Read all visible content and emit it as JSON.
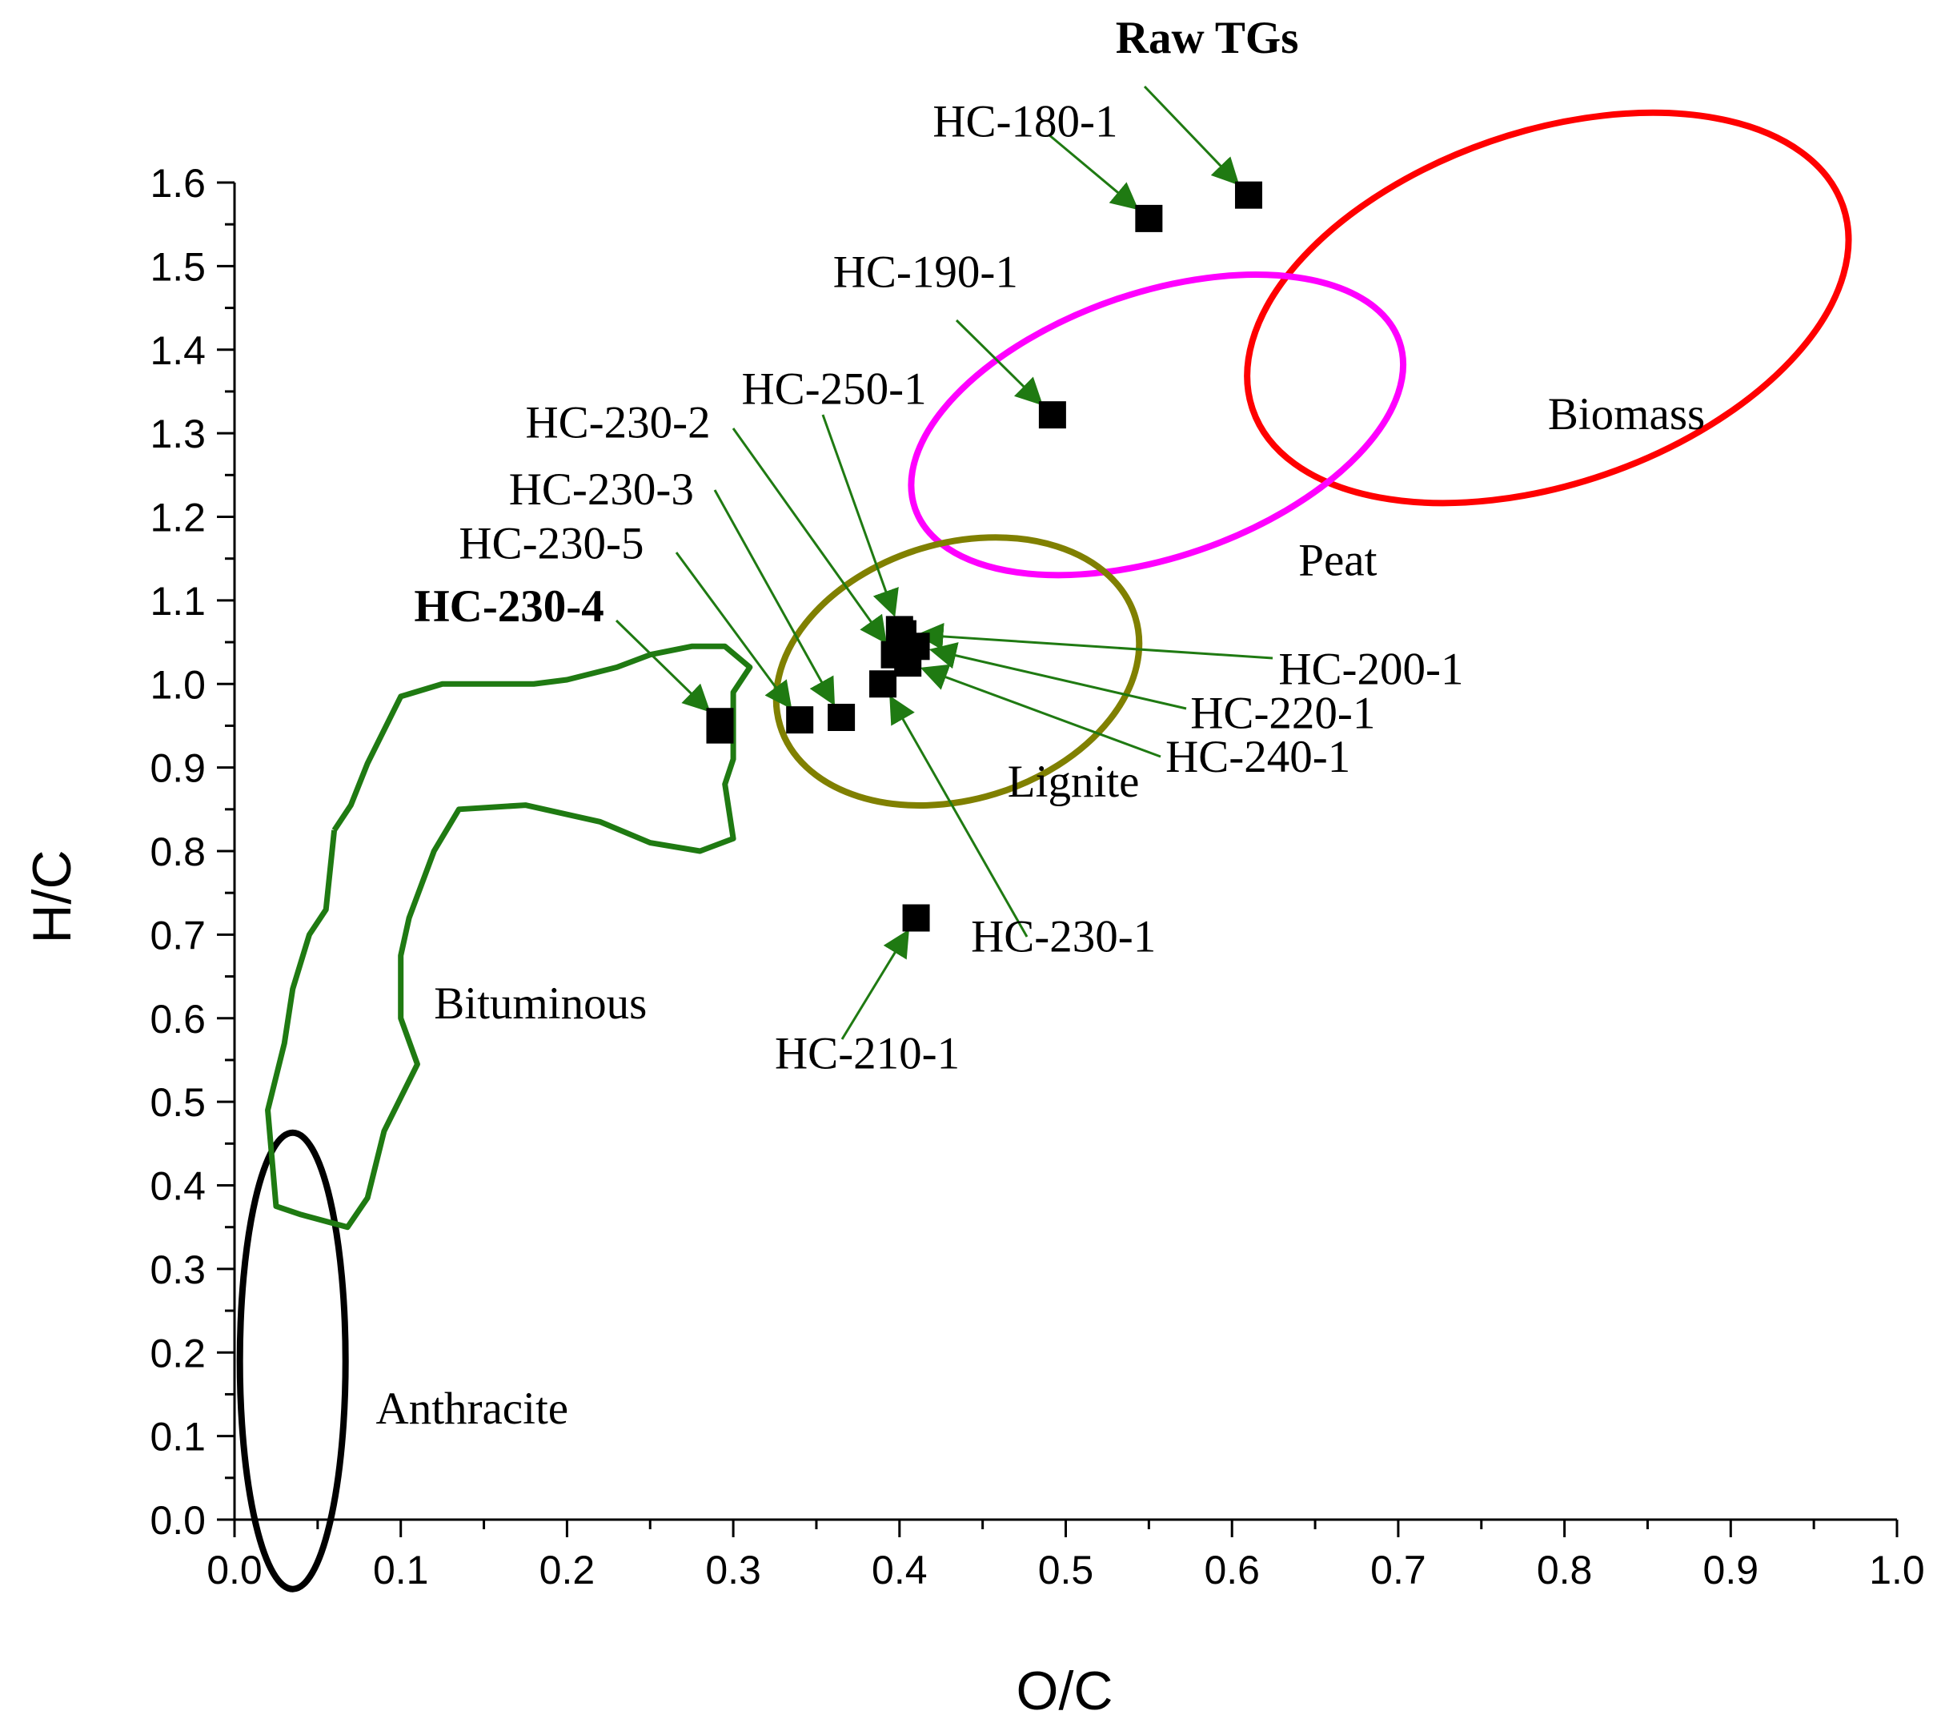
{
  "chart_data": {
    "type": "scatter",
    "title": "",
    "xlabel": "O/C",
    "ylabel": "H/C",
    "xlim": [
      0.0,
      1.0
    ],
    "ylim": [
      0.0,
      1.6
    ],
    "x_ticks": [
      "0.0",
      "0.1",
      "0.2",
      "0.3",
      "0.4",
      "0.5",
      "0.6",
      "0.7",
      "0.8",
      "0.9",
      "1.0"
    ],
    "y_ticks": [
      "0.0",
      "0.1",
      "0.2",
      "0.3",
      "0.4",
      "0.5",
      "0.6",
      "0.7",
      "0.8",
      "0.9",
      "1.0",
      "1.1",
      "1.2",
      "1.3",
      "1.4",
      "1.5",
      "1.6"
    ],
    "marker_color": "#000000",
    "arrow_color": "#1f7a12",
    "points": [
      {
        "name": "Raw TGs",
        "x": 0.61,
        "y": 1.585,
        "label_x": 0.53,
        "label_y": 1.755,
        "bold": true
      },
      {
        "name": "HC-180-1",
        "x": 0.55,
        "y": 1.557,
        "label_x": 0.42,
        "label_y": 1.655,
        "bold": false
      },
      {
        "name": "HC-190-1",
        "x": 0.492,
        "y": 1.322,
        "label_x": 0.36,
        "label_y": 1.475,
        "bold": false
      },
      {
        "name": "HC-250-1",
        "x": 0.4,
        "y": 1.065,
        "label_x": 0.305,
        "label_y": 1.335,
        "bold": false
      },
      {
        "name": "HC-230-2",
        "x": 0.397,
        "y": 1.035,
        "label_x": 0.175,
        "label_y": 1.295,
        "bold": false
      },
      {
        "name": "HC-230-3",
        "x": 0.365,
        "y": 0.96,
        "label_x": 0.165,
        "label_y": 1.215,
        "bold": false
      },
      {
        "name": "HC-230-5",
        "x": 0.34,
        "y": 0.957,
        "label_x": 0.135,
        "label_y": 1.15,
        "bold": false
      },
      {
        "name": "HC-230-4",
        "x": 0.292,
        "y": 0.955,
        "label_x": 0.108,
        "label_y": 1.075,
        "bold": true
      },
      {
        "name": "HC-230-4",
        "x": 0.292,
        "y": 0.945,
        "label_x": null,
        "label_y": null,
        "bold": true
      },
      {
        "name": "HC-200-1",
        "x": 0.402,
        "y": 1.06,
        "label_x": 0.628,
        "label_y": 1.0,
        "bold": false
      },
      {
        "name": "HC-220-1",
        "x": 0.41,
        "y": 1.045,
        "label_x": 0.575,
        "label_y": 0.947,
        "bold": false
      },
      {
        "name": "HC-240-1",
        "x": 0.405,
        "y": 1.025,
        "label_x": 0.56,
        "label_y": 0.895,
        "bold": false
      },
      {
        "name": "HC-230-1",
        "x": 0.39,
        "y": 1.0,
        "label_x": 0.443,
        "label_y": 0.68,
        "bold": false
      },
      {
        "name": "HC-210-1",
        "x": 0.41,
        "y": 0.72,
        "label_x": 0.325,
        "label_y": 0.54,
        "bold": false
      }
    ],
    "regions": [
      {
        "name": "Biomass",
        "color": "#ff0000",
        "label_x": 0.79,
        "label_y": 1.305
      },
      {
        "name": "Peat",
        "color": "#ff00ff",
        "label_x": 0.64,
        "label_y": 1.13
      },
      {
        "name": "Lignite",
        "color": "#808000",
        "label_x": 0.465,
        "label_y": 0.865
      },
      {
        "name": "Bituminous",
        "color": "#1f7a12",
        "label_x": 0.12,
        "label_y": 0.6
      },
      {
        "name": "Anthracite",
        "color": "#000000",
        "label_x": 0.085,
        "label_y": 0.115
      }
    ]
  }
}
